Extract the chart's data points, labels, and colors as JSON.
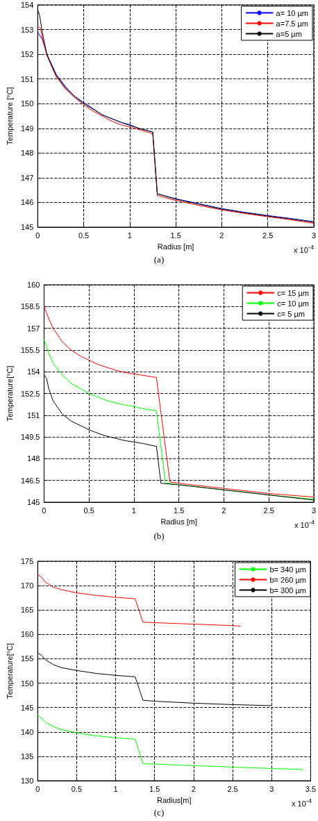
{
  "chart_data": [
    {
      "type": "line",
      "xlabel": "Radius [m]",
      "ylabel": "Temperature [°C]",
      "annotations": [
        "x 10$^{-4}$",
        "(a)"
      ],
      "xlim": [
        0,
        3
      ],
      "xticks": [
        0,
        0.5,
        1,
        1.5,
        2,
        2.5,
        3
      ],
      "ylim": [
        145,
        154
      ],
      "yticks": [
        145,
        146,
        147,
        148,
        149,
        150,
        151,
        152,
        153,
        154
      ],
      "grid": true,
      "legend": "top right",
      "marker": "none",
      "line_style": "solid",
      "series": [
        {
          "name": "a= 10 µm",
          "color": "#0000ff",
          "x": [
            0,
            0.05,
            0.1,
            0.2,
            0.3,
            0.4,
            0.5,
            0.6,
            0.7,
            0.8,
            0.9,
            1.0,
            1.1,
            1.25,
            1.3,
            1.5,
            1.75,
            2.0,
            2.25,
            2.5,
            2.75,
            3.0
          ],
          "values": [
            152.9,
            152.6,
            152.0,
            151.2,
            150.7,
            150.3,
            150.05,
            149.8,
            149.55,
            149.4,
            149.25,
            149.15,
            149.0,
            148.85,
            146.35,
            146.15,
            145.95,
            145.75,
            145.6,
            145.47,
            145.35,
            145.22
          ]
        },
        {
          "name": "a=7.5 µm",
          "color": "#ff0000",
          "x": [
            0,
            0.03,
            0.05,
            0.1,
            0.2,
            0.3,
            0.4,
            0.5,
            0.6,
            0.7,
            0.8,
            0.9,
            1.0,
            1.1,
            1.25,
            1.3,
            1.5,
            1.75,
            2.0,
            2.25,
            2.5,
            2.75,
            3.0
          ],
          "values": [
            153.15,
            153.05,
            152.7,
            151.95,
            151.1,
            150.6,
            150.25,
            149.95,
            149.7,
            149.5,
            149.3,
            149.15,
            149.05,
            148.95,
            148.78,
            146.28,
            146.08,
            145.88,
            145.7,
            145.55,
            145.42,
            145.3,
            145.15
          ]
        },
        {
          "name": "a=5 µm",
          "color": "#000000",
          "x": [
            0,
            0.02,
            0.05,
            0.1,
            0.2,
            0.3,
            0.4,
            0.5,
            0.6,
            0.7,
            0.8,
            0.9,
            1.0,
            1.1,
            1.25,
            1.3,
            1.5,
            1.75,
            2.0,
            2.25,
            2.5,
            2.75,
            3.0
          ],
          "values": [
            153.8,
            153.6,
            152.9,
            152.0,
            151.15,
            150.65,
            150.3,
            150.0,
            149.78,
            149.55,
            149.4,
            149.25,
            149.12,
            149.0,
            148.85,
            146.35,
            146.13,
            145.93,
            145.73,
            145.58,
            145.45,
            145.33,
            145.2
          ]
        }
      ]
    },
    {
      "type": "line",
      "xlabel": "Radius [m]",
      "ylabel": "Temperature[°C]",
      "annotations": [
        "x 10$^{-4}$",
        "(b)"
      ],
      "xlim": [
        0,
        3
      ],
      "xticks": [
        0,
        0.5,
        1,
        1.5,
        2,
        2.5,
        3
      ],
      "ylim": [
        145,
        160
      ],
      "yticks": [
        145,
        146.5,
        148,
        149.5,
        151,
        152.5,
        154,
        155.5,
        157,
        158.5,
        160
      ],
      "grid": true,
      "legend": "top right",
      "marker": "none",
      "line_style": "solid",
      "series": [
        {
          "name": "c= 15 µm",
          "color": "#ff0000",
          "x": [
            0,
            0.05,
            0.1,
            0.2,
            0.3,
            0.4,
            0.5,
            0.6,
            0.7,
            0.8,
            0.9,
            1.0,
            1.1,
            1.25,
            1.4,
            1.5,
            2.0,
            2.5,
            3.0
          ],
          "values": [
            158.5,
            157.7,
            157.0,
            156.1,
            155.5,
            155.1,
            154.8,
            154.5,
            154.3,
            154.1,
            153.95,
            153.85,
            153.75,
            153.6,
            146.4,
            146.3,
            145.95,
            145.6,
            145.35
          ]
        },
        {
          "name": "c= 10 µm",
          "color": "#00ff00",
          "x": [
            0,
            0.05,
            0.1,
            0.2,
            0.3,
            0.4,
            0.5,
            0.6,
            0.7,
            0.8,
            0.9,
            1.0,
            1.1,
            1.25,
            1.35,
            1.5,
            2.0,
            2.5,
            3.0
          ],
          "values": [
            156.2,
            155.3,
            154.6,
            153.8,
            153.2,
            152.85,
            152.5,
            152.25,
            152.0,
            151.85,
            151.7,
            151.6,
            151.45,
            151.3,
            146.35,
            146.2,
            145.85,
            145.5,
            145.2
          ]
        },
        {
          "name": "c= 5 µm",
          "color": "#000000",
          "x": [
            0,
            0.03,
            0.05,
            0.1,
            0.2,
            0.3,
            0.4,
            0.5,
            0.6,
            0.7,
            0.8,
            0.9,
            1.0,
            1.1,
            1.25,
            1.3,
            1.5,
            2.0,
            2.5,
            3.0
          ],
          "values": [
            153.8,
            153.5,
            152.9,
            152.0,
            151.1,
            150.6,
            150.3,
            150.0,
            149.75,
            149.55,
            149.4,
            149.25,
            149.15,
            149.05,
            148.85,
            146.3,
            146.2,
            145.85,
            145.5,
            145.15
          ]
        }
      ]
    },
    {
      "type": "line",
      "xlabel": "Radius[m]",
      "ylabel": "Temperature[°C]",
      "annotations": [
        "x 10$^{-4}$",
        "(c)"
      ],
      "xlim": [
        0,
        3.5
      ],
      "xticks": [
        0,
        0.5,
        1,
        1.5,
        2,
        2.5,
        3,
        3.5
      ],
      "ylim": [
        130,
        175
      ],
      "yticks": [
        130,
        135,
        140,
        145,
        150,
        155,
        160,
        165,
        170,
        175
      ],
      "grid": true,
      "legend": "top right",
      "marker": "none",
      "line_style": "solid",
      "series": [
        {
          "name": "b= 340 µm",
          "color": "#00ff00",
          "x": [
            0,
            0.05,
            0.1,
            0.2,
            0.3,
            0.5,
            0.75,
            1.0,
            1.25,
            1.35,
            1.5,
            2.0,
            2.5,
            3.0,
            3.4
          ],
          "values": [
            143.5,
            142.8,
            142.0,
            141.1,
            140.5,
            139.8,
            139.2,
            138.8,
            138.5,
            133.5,
            133.4,
            133.1,
            132.8,
            132.5,
            132.3
          ]
        },
        {
          "name": "b= 260 µm",
          "color": "#ff0000",
          "x": [
            0,
            0.05,
            0.1,
            0.2,
            0.3,
            0.5,
            0.75,
            1.0,
            1.25,
            1.35,
            1.5,
            2.0,
            2.5,
            2.6
          ],
          "values": [
            172.3,
            171.7,
            170.7,
            169.7,
            169.2,
            168.5,
            168.0,
            167.6,
            167.3,
            162.5,
            162.4,
            162.1,
            161.8,
            161.7
          ]
        },
        {
          "name": "b= 300 µm",
          "color": "#000000",
          "x": [
            0,
            0.05,
            0.1,
            0.2,
            0.3,
            0.5,
            0.75,
            1.0,
            1.25,
            1.35,
            1.5,
            2.0,
            2.5,
            3.0
          ],
          "values": [
            156.2,
            155.7,
            154.8,
            153.8,
            153.2,
            152.6,
            152.0,
            151.6,
            151.3,
            146.5,
            146.3,
            145.9,
            145.6,
            145.4
          ]
        }
      ]
    }
  ]
}
